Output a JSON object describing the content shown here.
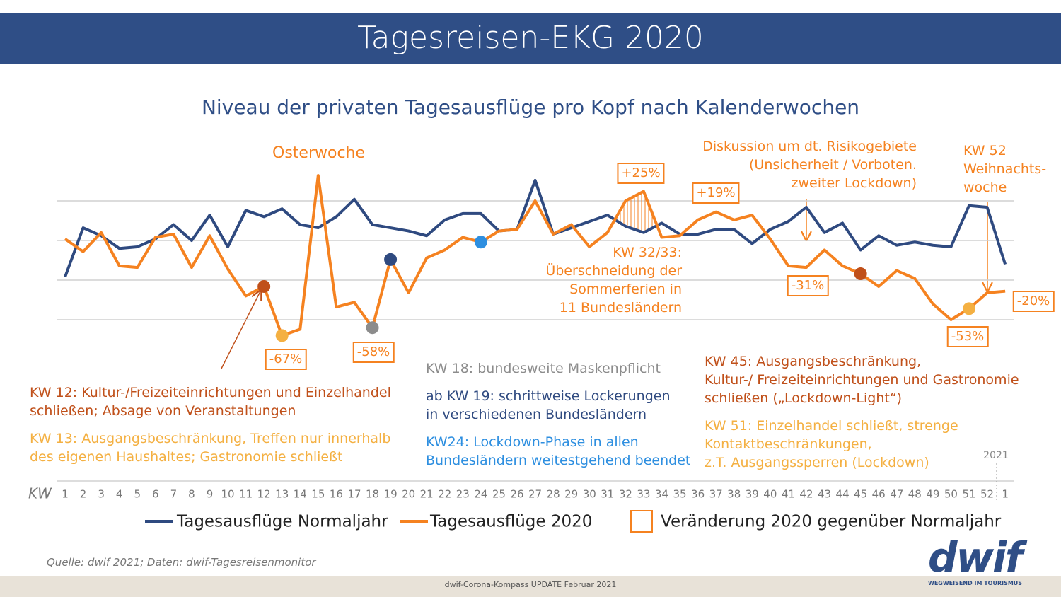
{
  "header": {
    "title": "Tagesreisen-EKG 2020"
  },
  "chart_data": {
    "type": "line",
    "title": "Niveau  der privaten Tagesausflüge pro Kopf nach Kalenderwochen",
    "x_axis_label": "KW",
    "categories": [
      "1",
      "2",
      "3",
      "4",
      "5",
      "6",
      "7",
      "8",
      "9",
      "10",
      "11",
      "12",
      "13",
      "14",
      "15",
      "16",
      "17",
      "18",
      "19",
      "20",
      "21",
      "22",
      "23",
      "24",
      "25",
      "26",
      "27",
      "28",
      "29",
      "30",
      "31",
      "32",
      "33",
      "34",
      "35",
      "36",
      "37",
      "38",
      "39",
      "40",
      "41",
      "42",
      "43",
      "44",
      "45",
      "46",
      "47",
      "48",
      "49",
      "50",
      "51",
      "52",
      "1"
    ],
    "year_label": "2021",
    "ylim": [
      25,
      150
    ],
    "grid_lines": [
      50,
      75,
      100,
      125
    ],
    "series": [
      {
        "name": "Tagesausflüge Normaljahr",
        "color": "#2f4a80",
        "values": [
          77,
          108,
          103,
          95,
          96,
          101,
          110,
          100,
          116,
          96,
          119,
          115,
          120,
          110,
          108,
          115,
          126,
          110,
          108,
          106,
          103,
          113,
          117,
          117,
          106,
          107,
          138,
          104,
          108,
          112,
          116,
          109,
          105,
          111,
          104,
          104,
          107,
          107,
          98,
          107,
          112,
          121,
          105,
          111,
          94,
          103,
          97,
          99,
          97,
          96,
          122,
          121,
          85
        ]
      },
      {
        "name": "Tagesausflüge  2020",
        "color": "#f58220",
        "values": [
          101,
          93,
          105,
          84,
          83,
          102,
          104,
          83,
          103,
          82,
          65,
          71,
          40,
          44,
          141,
          58,
          61,
          45,
          88,
          67,
          89,
          94,
          102,
          99,
          106,
          107,
          125,
          104,
          110,
          96,
          105,
          125,
          131,
          102,
          103,
          113,
          118,
          113,
          116,
          101,
          84,
          83,
          94,
          84,
          79,
          71,
          81,
          76,
          60,
          50,
          57,
          67,
          68
        ]
      }
    ],
    "markers": [
      {
        "index": 11,
        "color": "#c0501a"
      },
      {
        "index": 12,
        "color": "#f4b042"
      },
      {
        "index": 17,
        "color": "#8c8c8c"
      },
      {
        "index": 18,
        "color": "#2f4a80"
      },
      {
        "index": 23,
        "color": "#2e8fe0"
      },
      {
        "index": 44,
        "color": "#c0501a"
      },
      {
        "index": 50,
        "color": "#f4b042"
      }
    ],
    "hatched_between": [
      30,
      33
    ],
    "change_legend": "Veränderung 2020 gegenüber Normaljahr",
    "change_labels": [
      "-67%",
      "-58%",
      "+25%",
      "+19%",
      "-31%",
      "-53%",
      "-20%"
    ],
    "annotations": [
      {
        "color": "#f58220",
        "lines": [
          "Osterwoche"
        ]
      },
      {
        "color": "#f58220",
        "lines": [
          "Diskussion um dt. Risikogebiete",
          "(Unsicherheit / Vorboten.",
          "zweiter Lockdown)"
        ]
      },
      {
        "color": "#f58220",
        "lines": [
          "KW 52",
          "Weihnachts-",
          "woche"
        ]
      },
      {
        "color": "#f58220",
        "lines": [
          "KW 32/33:",
          "Überschneidung der",
          "Sommerferien in",
          "11 Bundesländern"
        ]
      },
      {
        "color": "#c0501a",
        "lines": [
          "KW 12: Kultur-/Freizeiteinrichtungen und Einzelhandel",
          "schließen; Absage von Veranstaltungen"
        ]
      },
      {
        "color": "#f4b042",
        "lines": [
          "KW 13: Ausgangsbeschränkung, Treffen nur innerhalb",
          "des eigenen Haushaltes; Gastronomie schließt"
        ]
      },
      {
        "color": "#8c8c8c",
        "lines": [
          "KW 18: bundesweite Maskenpflicht"
        ]
      },
      {
        "color": "#2f4a80",
        "lines": [
          "ab KW 19: schrittweise Lockerungen",
          "in verschiedenen Bundesländern"
        ]
      },
      {
        "color": "#2e8fe0",
        "lines": [
          "KW24: Lockdown-Phase in allen",
          "Bundesländern weitestgehend beendet"
        ]
      },
      {
        "color": "#c0501a",
        "lines": [
          "KW 45: Ausgangsbeschränkung,",
          "Kultur-/ Freizeiteinrichtungen und Gastronomie",
          "schließen („Lockdown-Light“)"
        ]
      },
      {
        "color": "#f4b042",
        "lines": [
          "KW 51: Einzelhandel schließt, strenge",
          "Kontaktbeschränkungen,",
          "z.T. Ausgangssperren (Lockdown)"
        ]
      }
    ]
  },
  "source": "Quelle: dwif 2021; Daten: dwif-Tagesreisenmonitor",
  "footer": "dwif-Corona-Kompass UPDATE Februar 2021",
  "logo": {
    "name": "dwif",
    "tagline": "WEGWEISEND IM TOURISMUS"
  }
}
